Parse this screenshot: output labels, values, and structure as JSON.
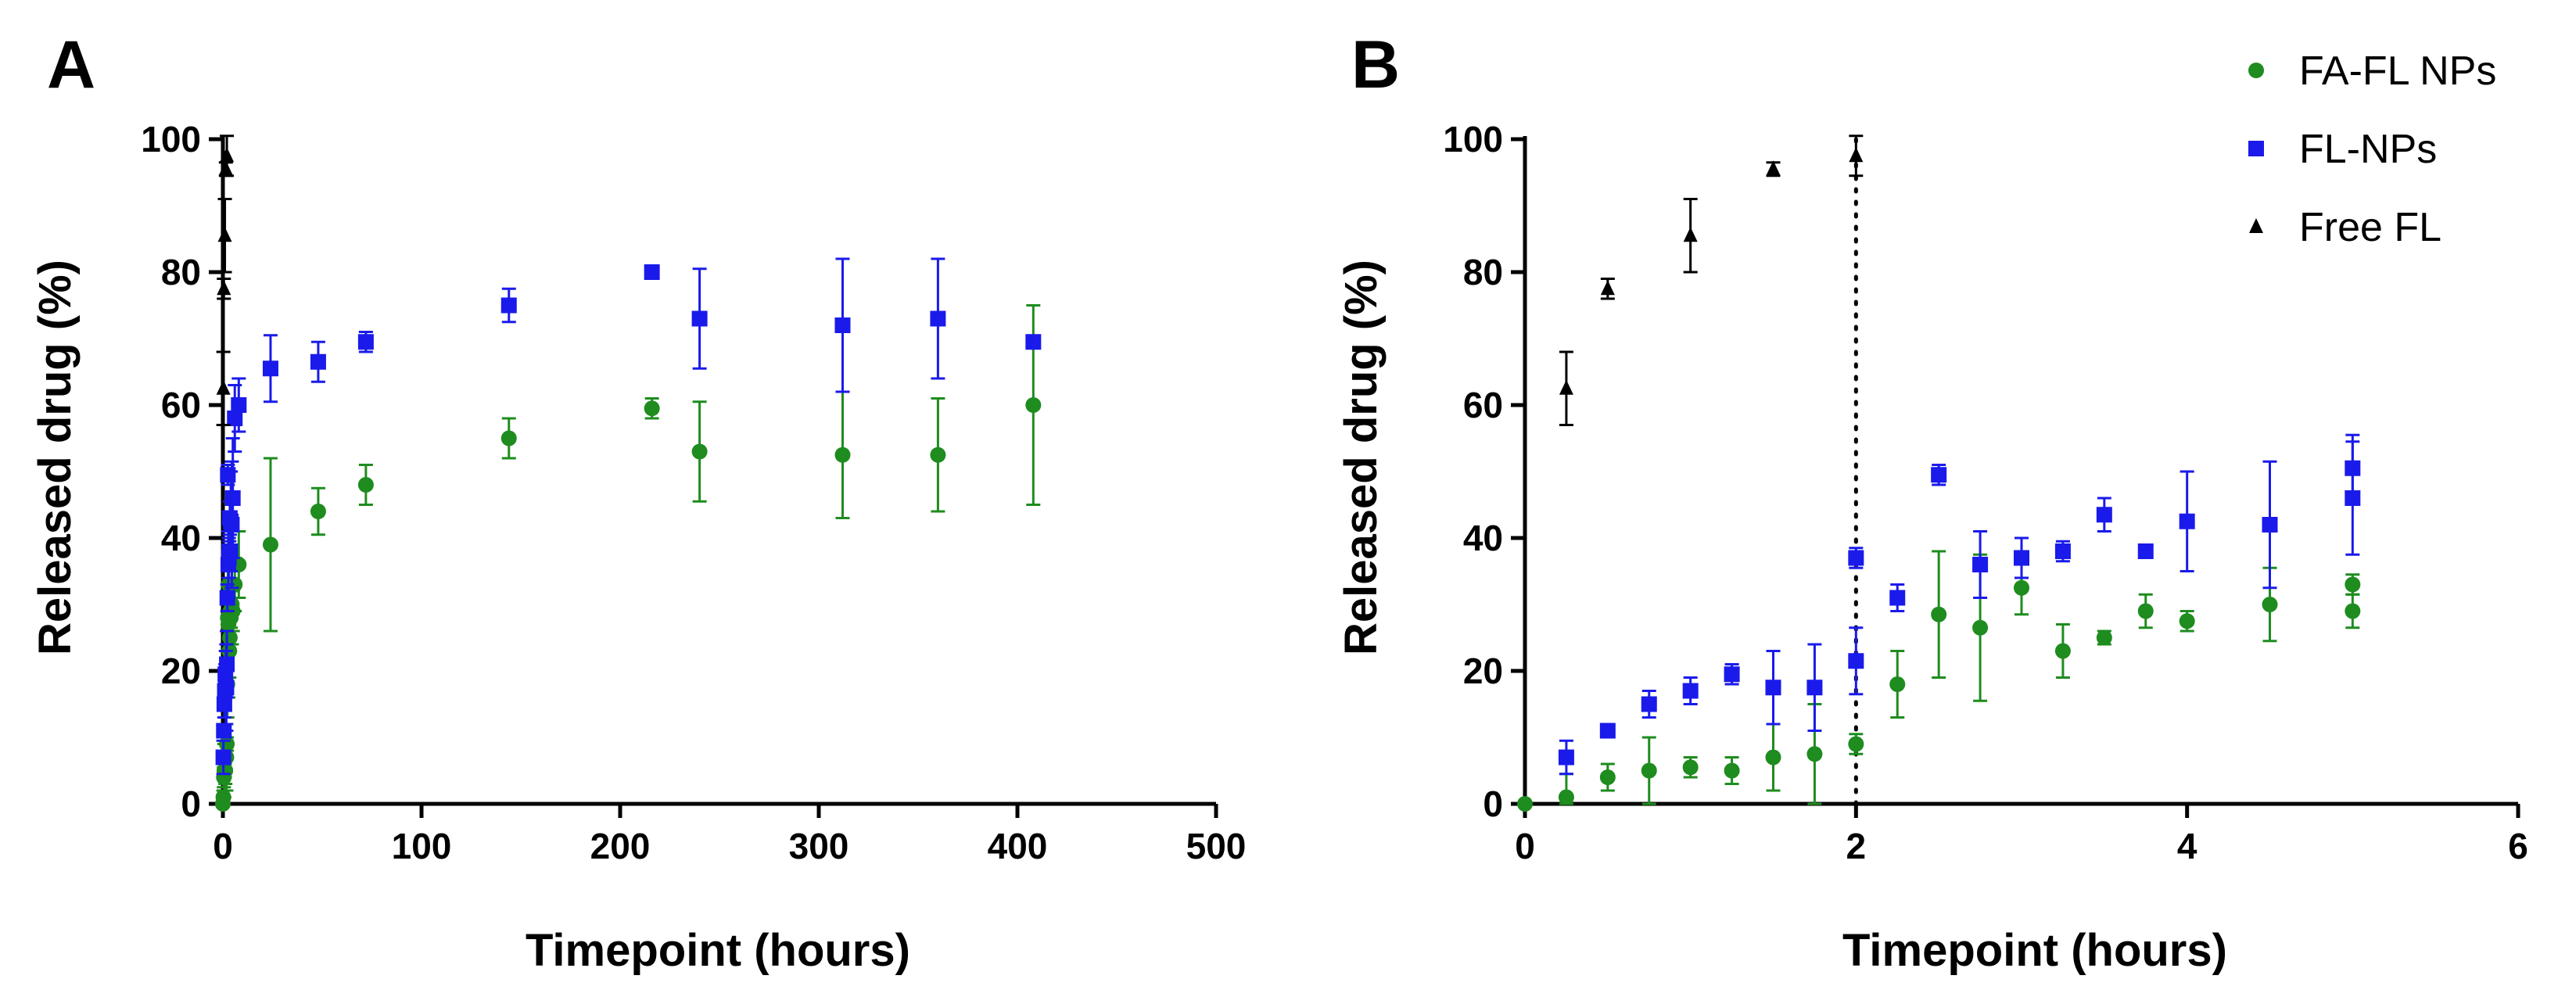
{
  "chart_data": [
    {
      "panel": "A",
      "type": "scatter",
      "xlabel": "Timepoint (hours)",
      "ylabel": "Released drug (%)",
      "xlim": [
        0,
        500
      ],
      "ylim": [
        0,
        100
      ],
      "xticks": [
        "0",
        "100",
        "200",
        "300",
        "400",
        "500"
      ],
      "yticks": [
        "0",
        "20",
        "40",
        "60",
        "80",
        "100"
      ],
      "grid": false,
      "series": [
        {
          "name": "FA-FL NPs",
          "marker": "circle",
          "color": "#1e8c1e",
          "points": [
            {
              "x": 0,
              "y": 0,
              "err": 0
            },
            {
              "x": 0.25,
              "y": 1,
              "err": 1
            },
            {
              "x": 0.5,
              "y": 4,
              "err": 1.5
            },
            {
              "x": 0.75,
              "y": 5,
              "err": 4
            },
            {
              "x": 1,
              "y": 5,
              "err": 1
            },
            {
              "x": 1.25,
              "y": 5,
              "err": 2
            },
            {
              "x": 1.5,
              "y": 7,
              "err": 5
            },
            {
              "x": 1.75,
              "y": 7,
              "err": 5
            },
            {
              "x": 2,
              "y": 9,
              "err": 1
            },
            {
              "x": 2.25,
              "y": 18,
              "err": 5
            },
            {
              "x": 2.5,
              "y": 28,
              "err": 10
            },
            {
              "x": 2.75,
              "y": 27,
              "err": 11
            },
            {
              "x": 3,
              "y": 33,
              "err": 4
            },
            {
              "x": 3.25,
              "y": 23,
              "err": 4
            },
            {
              "x": 3.5,
              "y": 25,
              "err": 1
            },
            {
              "x": 3.75,
              "y": 29,
              "err": 3
            },
            {
              "x": 4,
              "y": 28,
              "err": 1.5
            },
            {
              "x": 4.5,
              "y": 30,
              "err": 6
            },
            {
              "x": 5,
              "y": 29,
              "err": 3
            },
            {
              "x": 6,
              "y": 33,
              "err": 4
            },
            {
              "x": 8,
              "y": 36,
              "err": 5
            },
            {
              "x": 24,
              "y": 39,
              "err": 13
            },
            {
              "x": 48,
              "y": 44,
              "err": 3.5
            },
            {
              "x": 72,
              "y": 48,
              "err": 3
            },
            {
              "x": 144,
              "y": 55,
              "err": 3
            },
            {
              "x": 216,
              "y": 59.5,
              "err": 1.5
            },
            {
              "x": 240,
              "y": 53,
              "err": 7.5
            },
            {
              "x": 312,
              "y": 52.5,
              "err": 9.5
            },
            {
              "x": 360,
              "y": 52.5,
              "err": 8.5
            },
            {
              "x": 408,
              "y": 60,
              "err": 15
            }
          ]
        },
        {
          "name": "FL-NPs",
          "marker": "square",
          "color": "#1a1aeb",
          "points": [
            {
              "x": 0.25,
              "y": 7,
              "err": 2.5
            },
            {
              "x": 0.5,
              "y": 11,
              "err": 1
            },
            {
              "x": 0.75,
              "y": 15,
              "err": 2
            },
            {
              "x": 1,
              "y": 17,
              "err": 2
            },
            {
              "x": 1.25,
              "y": 19.5,
              "err": 1.5
            },
            {
              "x": 1.5,
              "y": 17.5,
              "err": 5.5
            },
            {
              "x": 1.75,
              "y": 17.5,
              "err": 6.5
            },
            {
              "x": 2,
              "y": 21,
              "err": 5
            },
            {
              "x": 2.25,
              "y": 31,
              "err": 2
            },
            {
              "x": 2.5,
              "y": 49.5,
              "err": 1.5
            },
            {
              "x": 2.75,
              "y": 36,
              "err": 5
            },
            {
              "x": 3,
              "y": 37,
              "err": 3
            },
            {
              "x": 3.25,
              "y": 38,
              "err": 1.5
            },
            {
              "x": 3.5,
              "y": 43,
              "err": 2.5
            },
            {
              "x": 3.75,
              "y": 38,
              "err": 1
            },
            {
              "x": 4,
              "y": 42.5,
              "err": 7.5
            },
            {
              "x": 4.5,
              "y": 42,
              "err": 9.5
            },
            {
              "x": 5,
              "y": 46,
              "err": 9
            },
            {
              "x": 6,
              "y": 58,
              "err": 5
            },
            {
              "x": 8,
              "y": 60,
              "err": 4
            },
            {
              "x": 24,
              "y": 65.5,
              "err": 5
            },
            {
              "x": 48,
              "y": 66.5,
              "err": 3
            },
            {
              "x": 72,
              "y": 69.5,
              "err": 1.5
            },
            {
              "x": 144,
              "y": 75,
              "err": 2.5
            },
            {
              "x": 216,
              "y": 80,
              "err": 1
            },
            {
              "x": 240,
              "y": 73,
              "err": 7.5
            },
            {
              "x": 312,
              "y": 72,
              "err": 10
            },
            {
              "x": 360,
              "y": 73,
              "err": 9
            },
            {
              "x": 408,
              "y": 69.5,
              "err": 0.5
            }
          ]
        },
        {
          "name": "Free FL",
          "marker": "triangle",
          "color": "#000000",
          "points": [
            {
              "x": 0.25,
              "y": 62.5,
              "err": 5.5
            },
            {
              "x": 0.5,
              "y": 77.5,
              "err": 1.5
            },
            {
              "x": 1,
              "y": 85.5,
              "err": 5.5
            },
            {
              "x": 1.5,
              "y": 95.5,
              "err": 1
            },
            {
              "x": 2,
              "y": 97.5,
              "err": 3
            }
          ]
        }
      ]
    },
    {
      "panel": "B",
      "type": "scatter",
      "xlabel": "Timepoint (hours)",
      "ylabel": "Released drug (%)",
      "xlim": [
        0,
        6
      ],
      "ylim": [
        0,
        100
      ],
      "xticks": [
        "0",
        "2",
        "4",
        "6"
      ],
      "yticks": [
        "0",
        "20",
        "40",
        "60",
        "80",
        "100"
      ],
      "grid": false,
      "reference_line_x": 2,
      "series": [
        {
          "name": "FA-FL NPs",
          "marker": "circle",
          "color": "#1e8c1e",
          "points": [
            {
              "x": 0,
              "y": 0,
              "err": 0
            },
            {
              "x": 0.25,
              "y": 1,
              "err": 3.5
            },
            {
              "x": 0.5,
              "y": 4,
              "err": 2
            },
            {
              "x": 0.75,
              "y": 5,
              "err": 5
            },
            {
              "x": 1,
              "y": 5.5,
              "err": 1.5
            },
            {
              "x": 1.25,
              "y": 5,
              "err": 2
            },
            {
              "x": 1.5,
              "y": 7,
              "err": 5
            },
            {
              "x": 1.75,
              "y": 7.5,
              "err": 7.5
            },
            {
              "x": 2,
              "y": 9,
              "err": 1.5
            },
            {
              "x": 2.25,
              "y": 18,
              "err": 5
            },
            {
              "x": 2.5,
              "y": 28.5,
              "err": 9.5
            },
            {
              "x": 2.75,
              "y": 26.5,
              "err": 11
            },
            {
              "x": 3,
              "y": 32.5,
              "err": 4
            },
            {
              "x": 3.25,
              "y": 23,
              "err": 4
            },
            {
              "x": 3.5,
              "y": 25,
              "err": 1
            },
            {
              "x": 3.75,
              "y": 29,
              "err": 2.5
            },
            {
              "x": 4,
              "y": 27.5,
              "err": 1.5
            },
            {
              "x": 4.5,
              "y": 30,
              "err": 5.5
            },
            {
              "x": 5,
              "y": 29,
              "err": 2.5
            },
            {
              "x": 5,
              "y": 33,
              "err": 1.5
            }
          ]
        },
        {
          "name": "FL-NPs",
          "marker": "square",
          "color": "#1a1aeb",
          "points": [
            {
              "x": 0.25,
              "y": 7,
              "err": 2.5
            },
            {
              "x": 0.5,
              "y": 11,
              "err": 1
            },
            {
              "x": 0.75,
              "y": 15,
              "err": 2
            },
            {
              "x": 1,
              "y": 17,
              "err": 2
            },
            {
              "x": 1.25,
              "y": 19.5,
              "err": 1.5
            },
            {
              "x": 1.5,
              "y": 17.5,
              "err": 5.5
            },
            {
              "x": 1.75,
              "y": 17.5,
              "err": 6.5
            },
            {
              "x": 2,
              "y": 21.5,
              "err": 5
            },
            {
              "x": 2,
              "y": 37,
              "err": 1.5
            },
            {
              "x": 2.25,
              "y": 31,
              "err": 2
            },
            {
              "x": 2.5,
              "y": 49.5,
              "err": 1.5
            },
            {
              "x": 2.75,
              "y": 36,
              "err": 5
            },
            {
              "x": 3,
              "y": 37,
              "err": 3
            },
            {
              "x": 3.25,
              "y": 38,
              "err": 1.5
            },
            {
              "x": 3.5,
              "y": 43.5,
              "err": 2.5
            },
            {
              "x": 3.75,
              "y": 38,
              "err": 1
            },
            {
              "x": 4,
              "y": 42.5,
              "err": 7.5
            },
            {
              "x": 4.5,
              "y": 42,
              "err": 9.5
            },
            {
              "x": 5,
              "y": 46,
              "err": 8.5
            },
            {
              "x": 5,
              "y": 50.5,
              "err": 5
            }
          ]
        },
        {
          "name": "Free FL",
          "marker": "triangle",
          "color": "#000000",
          "points": [
            {
              "x": 0.25,
              "y": 62.5,
              "err": 5.5
            },
            {
              "x": 0.5,
              "y": 77.5,
              "err": 1.5
            },
            {
              "x": 1,
              "y": 85.5,
              "err": 5.5
            },
            {
              "x": 1.5,
              "y": 95.5,
              "err": 1
            },
            {
              "x": 2,
              "y": 97.5,
              "err": 3
            }
          ]
        }
      ]
    }
  ],
  "legend": {
    "placement": "top-right",
    "entries": [
      {
        "label": "FA-FL NPs",
        "marker": "circle",
        "color": "#1e8c1e"
      },
      {
        "label": "FL-NPs",
        "marker": "square",
        "color": "#1a1aeb"
      },
      {
        "label": "Free FL",
        "marker": "triangle",
        "color": "#000000"
      }
    ]
  }
}
